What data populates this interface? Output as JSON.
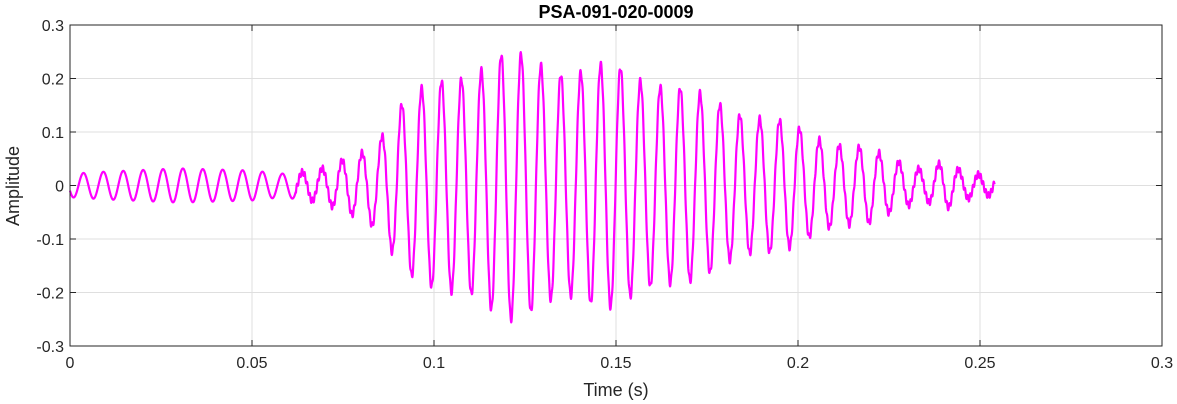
{
  "chart_data": {
    "type": "line",
    "title": "PSA-091-020-0009",
    "xlabel": "Time (s)",
    "ylabel": "Amplitude",
    "xlim": [
      0,
      0.3
    ],
    "ylim": [
      -0.3,
      0.3
    ],
    "x_ticks": [
      "0",
      "0.05",
      "0.1",
      "0.15",
      "0.2",
      "0.25",
      "0.3"
    ],
    "x_tick_values": [
      0,
      0.05,
      0.1,
      0.15,
      0.2,
      0.25,
      0.3
    ],
    "y_ticks": [
      "0.3",
      "0.2",
      "0.1",
      "0",
      "-0.1",
      "-0.2",
      "-0.3"
    ],
    "y_tick_values": [
      0.3,
      0.2,
      0.1,
      0,
      -0.1,
      -0.2,
      -0.3
    ],
    "grid": true,
    "line_color": "#ff00ff",
    "series": [
      {
        "x_start": 0.0,
        "x_end": 0.254,
        "oscillation_frequency_hz": 183,
        "envelope": [
          [
            0.0,
            0.022
          ],
          [
            0.01,
            0.026
          ],
          [
            0.03,
            0.032
          ],
          [
            0.05,
            0.028
          ],
          [
            0.058,
            0.022
          ],
          [
            0.063,
            0.026
          ],
          [
            0.07,
            0.032
          ],
          [
            0.075,
            0.045
          ],
          [
            0.08,
            0.06
          ],
          [
            0.085,
            0.09
          ],
          [
            0.09,
            0.15
          ],
          [
            0.095,
            0.17
          ],
          [
            0.1,
            0.18
          ],
          [
            0.105,
            0.2
          ],
          [
            0.11,
            0.215
          ],
          [
            0.115,
            0.235
          ],
          [
            0.12,
            0.24
          ],
          [
            0.125,
            0.23
          ],
          [
            0.13,
            0.225
          ],
          [
            0.14,
            0.215
          ],
          [
            0.15,
            0.215
          ],
          [
            0.16,
            0.2
          ],
          [
            0.17,
            0.17
          ],
          [
            0.18,
            0.15
          ],
          [
            0.19,
            0.125
          ],
          [
            0.2,
            0.105
          ],
          [
            0.21,
            0.08
          ],
          [
            0.22,
            0.065
          ],
          [
            0.225,
            0.05
          ],
          [
            0.23,
            0.04
          ],
          [
            0.235,
            0.03
          ],
          [
            0.24,
            0.045
          ],
          [
            0.245,
            0.025
          ],
          [
            0.25,
            0.02
          ],
          [
            0.254,
            0.018
          ]
        ]
      }
    ]
  }
}
